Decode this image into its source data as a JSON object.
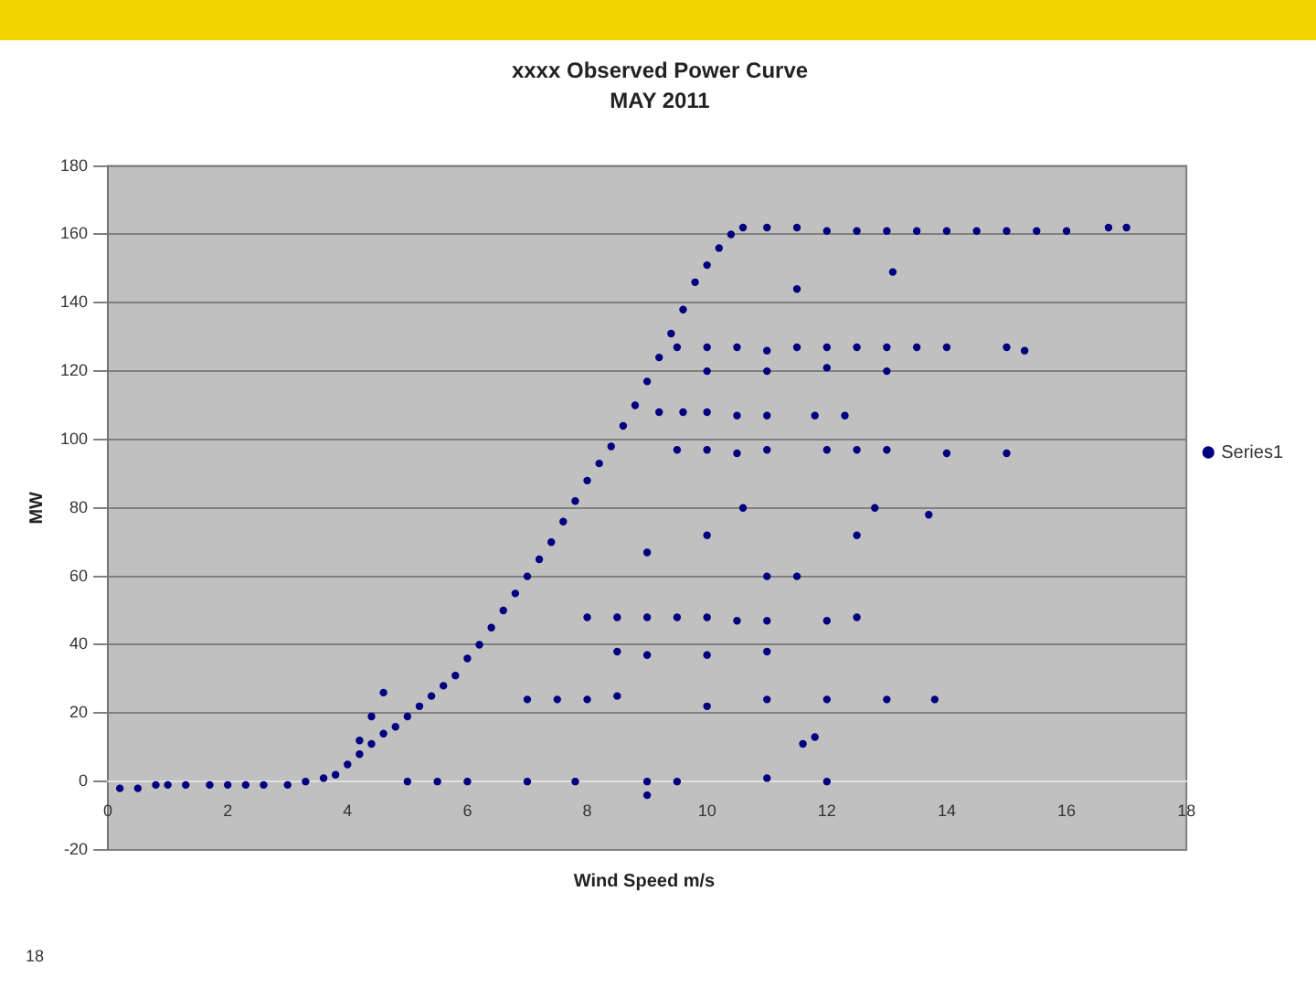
{
  "chart_data": {
    "type": "scatter",
    "title": "xxxx Observed Power Curve",
    "subtitle": "MAY 2011",
    "xlabel": "Wind Speed m/s",
    "ylabel": "MW",
    "annotations": [
      "18"
    ],
    "xlim": [
      0,
      18
    ],
    "xticks": [
      0,
      2,
      4,
      6,
      8,
      10,
      12,
      14,
      16,
      18
    ],
    "ylim": [
      -20,
      180
    ],
    "yticks": [
      -20,
      0,
      20,
      40,
      60,
      80,
      100,
      120,
      140,
      160,
      180
    ],
    "grid": "y",
    "legend": "right",
    "marker": "circle",
    "series": [
      {
        "name": "Series1",
        "color": "#000080",
        "x": [
          0.2,
          0.5,
          0.8,
          1,
          1.3,
          1.7,
          2,
          2.3,
          2.6,
          3,
          3.3,
          3.6,
          3.8,
          4,
          4.2,
          4.4,
          4.6,
          4.8,
          5,
          5.2,
          5.4,
          5.6,
          5.8,
          6,
          6.2,
          6.4,
          6.6,
          6.8,
          7,
          7.2,
          7.4,
          7.6,
          7.8,
          8,
          8.2,
          8.4,
          8.6,
          8.8,
          9,
          9.2,
          9.4,
          9.6,
          9.8,
          10,
          10.2,
          10.4,
          10.6,
          11,
          11.5,
          12,
          12.5,
          13,
          13.5,
          14,
          14.5,
          15,
          15.5,
          16,
          16.7,
          17,
          4.2,
          4.4,
          4.6,
          9.5,
          10,
          10.5,
          11,
          11.5,
          12,
          12.5,
          13,
          13.5,
          14,
          15,
          15.3,
          10,
          11,
          12,
          13,
          9.2,
          9.6,
          10,
          10.5,
          11,
          11.8,
          12.3,
          9.5,
          10,
          10.5,
          11,
          12,
          12.5,
          13,
          14,
          15,
          13.1,
          11.5,
          8,
          8.5,
          9,
          9.5,
          10,
          10.5,
          11,
          12,
          12.5,
          8.5,
          9,
          10,
          11,
          7,
          7.5,
          8,
          8.5,
          10,
          11,
          12,
          13,
          13.8,
          5,
          5.5,
          6,
          7,
          7.8,
          9,
          9.5,
          11,
          12,
          9,
          10,
          10.6,
          11,
          11.5,
          12.5,
          12.8,
          13.7,
          11.8,
          11.6,
          9
        ],
        "values": [
          -2,
          -2,
          -1,
          -1,
          -1,
          -1,
          -1,
          -1,
          -1,
          -1,
          0,
          1,
          2,
          5,
          8,
          11,
          14,
          16,
          19,
          22,
          25,
          28,
          31,
          36,
          40,
          45,
          50,
          55,
          60,
          65,
          70,
          76,
          82,
          88,
          93,
          98,
          104,
          110,
          117,
          124,
          131,
          138,
          146,
          151,
          156,
          160,
          162,
          162,
          162,
          161,
          161,
          161,
          161,
          161,
          161,
          161,
          161,
          161,
          162,
          162,
          12,
          19,
          26,
          127,
          127,
          127,
          126,
          127,
          127,
          127,
          127,
          127,
          127,
          127,
          126,
          120,
          120,
          121,
          120,
          108,
          108,
          108,
          107,
          107,
          107,
          107,
          97,
          97,
          96,
          97,
          97,
          97,
          97,
          96,
          96,
          149,
          144,
          48,
          48,
          48,
          48,
          48,
          47,
          47,
          47,
          48,
          38,
          37,
          37,
          38,
          24,
          24,
          24,
          25,
          22,
          24,
          24,
          24,
          24,
          0,
          0,
          0,
          0,
          0,
          0,
          0,
          1,
          0,
          67,
          72,
          80,
          60,
          60,
          72,
          80,
          78,
          13,
          11,
          -4
        ]
      }
    ]
  }
}
